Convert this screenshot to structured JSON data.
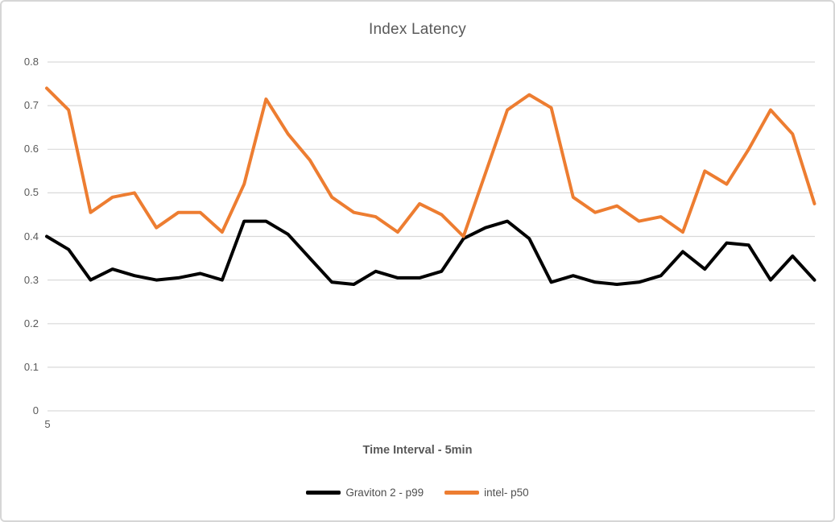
{
  "window": {
    "background": "#ffffff",
    "border_color": "#d6d6d6"
  },
  "colors": {
    "gridline": "#d9d9d9",
    "tick_text": "#595959",
    "title_text": "#595959",
    "series_graviton": "#000000",
    "series_intel": "#ed7d31"
  },
  "chart_data": {
    "type": "line",
    "title": "Index Latency",
    "xlabel": "Time Interval - 5min",
    "ylabel": "",
    "ylim": [
      0,
      0.8
    ],
    "y_ticks": [
      "0.8",
      "0.7",
      "0.6",
      "0.5",
      "0.4",
      "0.3",
      "0.2",
      "0.1",
      "0"
    ],
    "y_tick_values": [
      0.8,
      0.7,
      0.6,
      0.5,
      0.4,
      0.3,
      0.2,
      0.1,
      0
    ],
    "x_tick_labels": [
      "5"
    ],
    "grid": true,
    "legend_position": "bottom",
    "series": [
      {
        "name": "Graviton 2 - p99",
        "color": "#000000",
        "values": [
          0.4,
          0.37,
          0.3,
          0.325,
          0.31,
          0.3,
          0.305,
          0.315,
          0.3,
          0.435,
          0.435,
          0.405,
          0.35,
          0.295,
          0.29,
          0.32,
          0.305,
          0.305,
          0.32,
          0.395,
          0.42,
          0.435,
          0.395,
          0.295,
          0.31,
          0.295,
          0.29,
          0.295,
          0.31,
          0.365,
          0.325,
          0.385,
          0.38,
          0.3,
          0.355,
          0.3
        ]
      },
      {
        "name": "intel- p50",
        "color": "#ed7d31",
        "values": [
          0.74,
          0.69,
          0.455,
          0.49,
          0.5,
          0.42,
          0.455,
          0.455,
          0.41,
          0.52,
          0.715,
          0.635,
          0.575,
          0.49,
          0.455,
          0.445,
          0.41,
          0.475,
          0.45,
          0.4,
          0.545,
          0.69,
          0.725,
          0.695,
          0.49,
          0.455,
          0.47,
          0.435,
          0.445,
          0.41,
          0.55,
          0.52,
          0.6,
          0.69,
          0.635,
          0.475
        ]
      }
    ]
  }
}
